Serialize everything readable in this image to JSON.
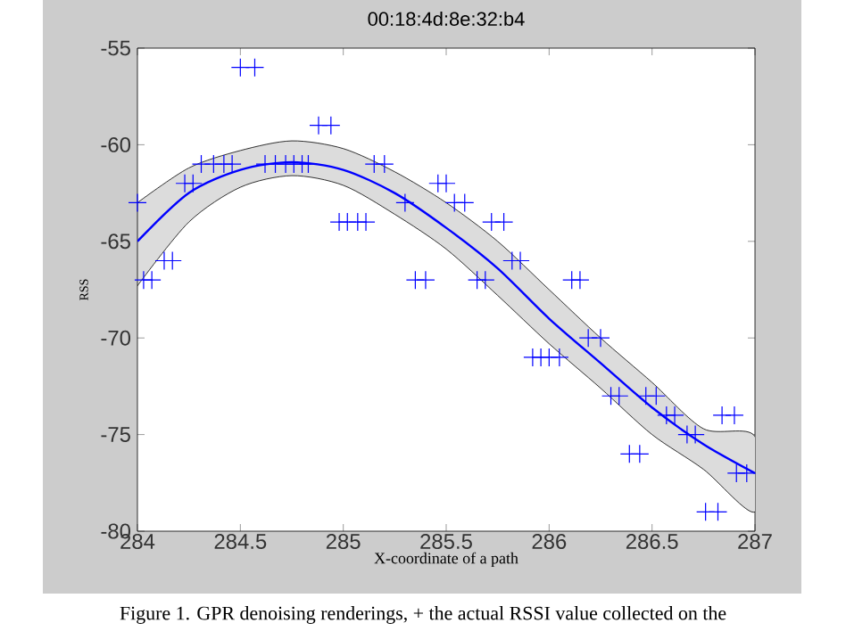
{
  "chart_data": {
    "type": "scatter",
    "title": "00:18:4d:8e:32:b4",
    "xlabel": "X-coordinate of a path",
    "ylabel": "RSS",
    "annotations": [
      "Figure 1. GPR denoising renderings, + the actual RSSI value collected on the"
    ],
    "xlim": [
      284,
      287
    ],
    "ylim": [
      -80,
      -55
    ],
    "xticks": [
      284,
      284.5,
      285,
      285.5,
      286,
      286.5,
      287
    ],
    "yticks": [
      -80,
      -75,
      -70,
      -65,
      -60,
      -55
    ],
    "series": [
      {
        "type": "line",
        "color": "#0000ff",
        "x": [
          284,
          284.25,
          284.5,
          284.75,
          285,
          285.25,
          285.5,
          285.75,
          286,
          286.25,
          286.5,
          286.75,
          287
        ],
        "values": [
          -65,
          -62.5,
          -61.3,
          -60.9,
          -61.3,
          -62.5,
          -64.3,
          -66.4,
          -69,
          -71.3,
          -73.6,
          -75.5,
          -77
        ],
        "upper": [
          -63,
          -61.2,
          -60.3,
          -59.8,
          -60.2,
          -61.4,
          -63,
          -65,
          -67.5,
          -70,
          -72.3,
          -74.7,
          -75.1
        ],
        "lower": [
          -67.3,
          -64,
          -62.2,
          -61.6,
          -62.1,
          -63.6,
          -65.4,
          -67.8,
          -70.3,
          -72.6,
          -75,
          -76.8,
          -79
        ]
      },
      {
        "color": "#0000ff",
        "marker": "cross",
        "x": [
          284.5,
          284.57,
          284.88,
          284.94,
          284.31,
          284.37,
          284.42,
          284.46,
          284.62,
          284.67,
          284.72,
          284.76,
          284.8,
          284.83,
          284.23,
          284.27,
          284.0,
          284.13,
          284.17,
          284.03,
          284.07,
          284.98,
          285.02,
          285.07,
          285.11,
          285.15,
          285.2,
          285.3,
          285.46,
          285.5,
          285.54,
          285.59,
          285.72,
          285.78,
          285.82,
          285.86,
          285.35,
          285.4,
          285.65,
          285.69,
          286.11,
          286.15,
          286.19,
          286.25,
          285.92,
          285.96,
          286.0,
          286.05,
          286.3,
          286.34,
          286.47,
          286.52,
          286.57,
          286.61,
          286.67,
          286.71,
          286.84,
          286.9,
          286.39,
          286.44,
          286.76,
          286.82,
          286.91,
          286.96
        ],
        "values": [
          -56,
          -56,
          -59,
          -59,
          -61,
          -61,
          -61,
          -61,
          -61,
          -61,
          -61,
          -61,
          -61,
          -61,
          -62,
          -62,
          -63,
          -66,
          -66,
          -67,
          -67,
          -64,
          -64,
          -64,
          -64,
          -61,
          -61,
          -63,
          -62,
          -62,
          -63,
          -63,
          -64,
          -64,
          -66,
          -66,
          -67,
          -67,
          -67,
          -67,
          -67,
          -67,
          -70,
          -70,
          -71,
          -71,
          -71,
          -71,
          -73,
          -73,
          -73,
          -73,
          -74,
          -74,
          -75,
          -75,
          -74,
          -74,
          -76,
          -76,
          -79,
          -79,
          -77,
          -77
        ]
      }
    ]
  }
}
